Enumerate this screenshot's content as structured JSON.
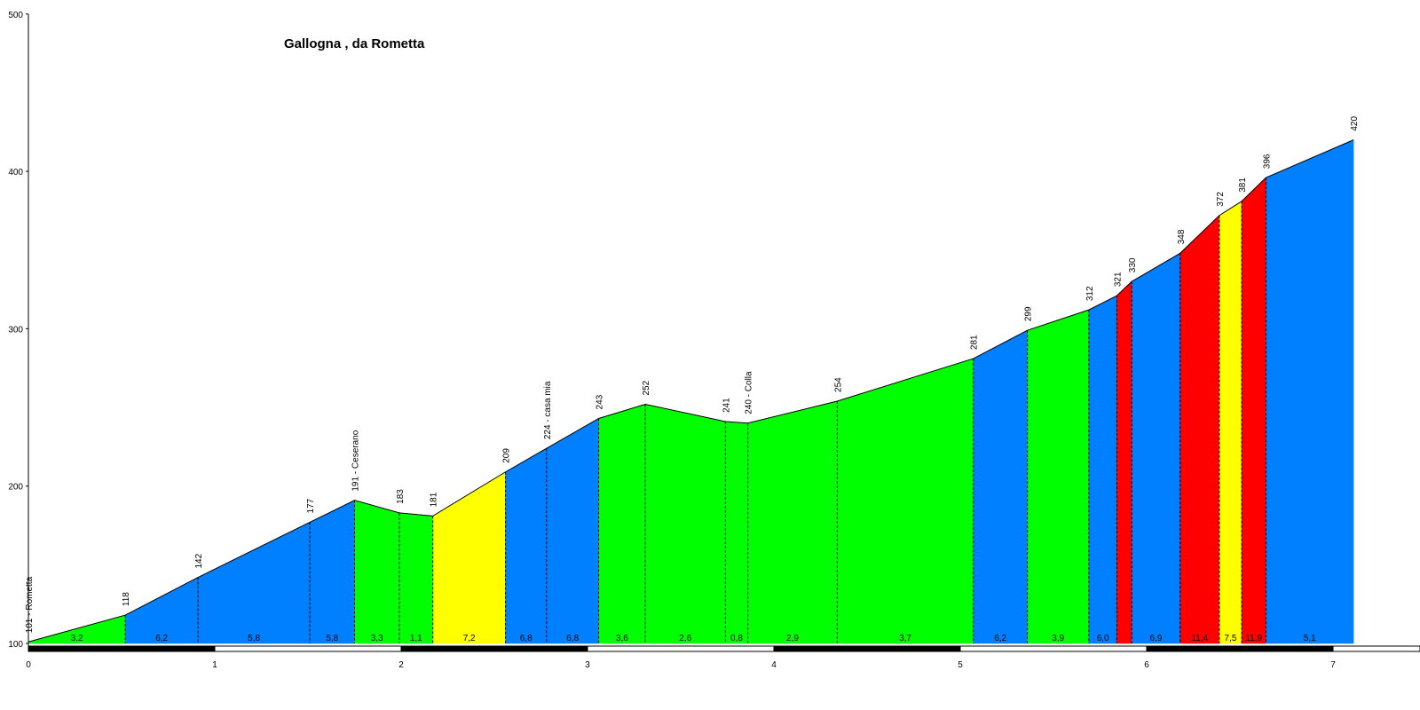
{
  "chart_data": {
    "type": "area",
    "title": "Gallogna , da Rometta",
    "xlabel": "",
    "ylabel": "",
    "xlim": [
      0,
      7.6
    ],
    "ylim": [
      100,
      500
    ],
    "y_ticks": [
      "100",
      "200",
      "300",
      "400",
      "500"
    ],
    "x_ticks": [
      "0",
      "1",
      "2",
      "3",
      "4",
      "5",
      "6",
      "7"
    ],
    "points": [
      {
        "km": 0.0,
        "alt": 101,
        "label": "101 - Rometta"
      },
      {
        "km": 0.52,
        "alt": 118,
        "label": "118"
      },
      {
        "km": 0.91,
        "alt": 142,
        "label": "142"
      },
      {
        "km": 1.51,
        "alt": 177,
        "label": "177"
      },
      {
        "km": 1.75,
        "alt": 191,
        "label": "191 - Ceserano"
      },
      {
        "km": 1.99,
        "alt": 183,
        "label": "183"
      },
      {
        "km": 2.17,
        "alt": 181,
        "label": "181"
      },
      {
        "km": 2.56,
        "alt": 209,
        "label": "209"
      },
      {
        "km": 2.78,
        "alt": 224,
        "label": "224 - casa mia"
      },
      {
        "km": 3.06,
        "alt": 243,
        "label": "243"
      },
      {
        "km": 3.31,
        "alt": 252,
        "label": "252"
      },
      {
        "km": 3.74,
        "alt": 241,
        "label": "241"
      },
      {
        "km": 3.86,
        "alt": 240,
        "label": "240 - Colla"
      },
      {
        "km": 4.34,
        "alt": 254,
        "label": "254"
      },
      {
        "km": 5.07,
        "alt": 281,
        "label": "281"
      },
      {
        "km": 5.36,
        "alt": 299,
        "label": "299"
      },
      {
        "km": 5.69,
        "alt": 312,
        "label": "312"
      },
      {
        "km": 5.84,
        "alt": 321,
        "label": "321"
      },
      {
        "km": 5.92,
        "alt": 330,
        "label": "330"
      },
      {
        "km": 6.18,
        "alt": 348,
        "label": "348"
      },
      {
        "km": 6.39,
        "alt": 372,
        "label": "372"
      },
      {
        "km": 6.51,
        "alt": 381,
        "label": "381"
      },
      {
        "km": 6.64,
        "alt": 396,
        "label": "396"
      },
      {
        "km": 7.11,
        "alt": 420,
        "label": "420"
      }
    ],
    "segments": [
      {
        "grade": "3,2",
        "color": "#00ff00"
      },
      {
        "grade": "6,2",
        "color": "#0080ff"
      },
      {
        "grade": "5,8",
        "color": "#0080ff"
      },
      {
        "grade": "5,8",
        "color": "#0080ff"
      },
      {
        "grade": "3,3",
        "color": "#00ff00"
      },
      {
        "grade": "1,1",
        "color": "#00ff00"
      },
      {
        "grade": "7,2",
        "color": "#ffff00"
      },
      {
        "grade": "6,8",
        "color": "#0080ff"
      },
      {
        "grade": "6,8",
        "color": "#0080ff"
      },
      {
        "grade": "3,6",
        "color": "#00ff00"
      },
      {
        "grade": "2,6",
        "color": "#00ff00"
      },
      {
        "grade": "0,8",
        "color": "#00ff00"
      },
      {
        "grade": "2,9",
        "color": "#00ff00"
      },
      {
        "grade": "3,7",
        "color": "#00ff00"
      },
      {
        "grade": "6,2",
        "color": "#0080ff"
      },
      {
        "grade": "3,9",
        "color": "#00ff00"
      },
      {
        "grade": "6,0",
        "color": "#0080ff"
      },
      {
        "grade": "",
        "color": "#ff0000"
      },
      {
        "grade": "6,9",
        "color": "#0080ff"
      },
      {
        "grade": "11,4",
        "color": "#ff0000"
      },
      {
        "grade": "7,5",
        "color": "#ffff00"
      },
      {
        "grade": "11,9",
        "color": "#ff0000"
      },
      {
        "grade": "5,1",
        "color": "#0080ff"
      }
    ],
    "legend": "none",
    "grid": false
  }
}
